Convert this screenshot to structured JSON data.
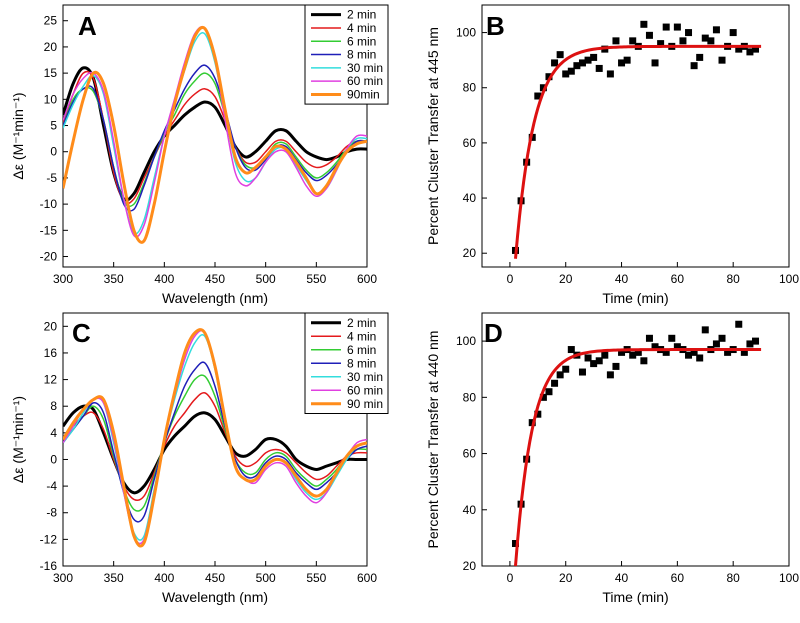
{
  "chart_data": [
    {
      "panel": "A",
      "type": "line",
      "xlabel": "Wavelength (nm)",
      "ylabel": "Δε (M⁻¹min⁻¹)",
      "xlim": [
        300,
        600
      ],
      "ylim": [
        -22,
        28
      ],
      "xticks": [
        300,
        350,
        400,
        450,
        500,
        550,
        600
      ],
      "yticks": [
        -20,
        -15,
        -10,
        -5,
        0,
        5,
        10,
        15,
        20,
        25
      ],
      "legend_position": "top-right",
      "x": [
        300,
        310,
        320,
        330,
        340,
        350,
        360,
        370,
        380,
        390,
        400,
        410,
        420,
        430,
        440,
        450,
        460,
        470,
        480,
        490,
        500,
        510,
        520,
        530,
        540,
        550,
        560,
        570,
        580,
        590,
        600
      ],
      "series": [
        {
          "name": "2 min",
          "color": "#000000",
          "width": 3,
          "values": [
            7,
            13,
            16,
            14,
            5,
            -4,
            -9,
            -8,
            -4,
            0,
            3,
            5,
            7,
            8.5,
            9.5,
            8.5,
            5,
            1,
            -1,
            0,
            2,
            4,
            4,
            2,
            0,
            -1,
            -1.5,
            -1,
            0,
            0.5,
            0.5
          ]
        },
        {
          "name": "4 min",
          "color": "#e41a1c",
          "width": 1.5,
          "values": [
            5.5,
            11,
            15,
            14,
            6,
            -4,
            -9.5,
            -9,
            -5,
            -1,
            3,
            6,
            9,
            11,
            12,
            10.5,
            6,
            1,
            -2,
            -2,
            0,
            2,
            2,
            0,
            -2,
            -3,
            -2.5,
            -1,
            1,
            2,
            2
          ]
        },
        {
          "name": "6 min",
          "color": "#33cc33",
          "width": 1.5,
          "values": [
            5,
            10,
            12,
            11.5,
            6,
            -3,
            -9.5,
            -10,
            -6,
            -1,
            3.5,
            7,
            11,
            13.5,
            15,
            13,
            7,
            1,
            -2.5,
            -3,
            -1,
            1.5,
            1.5,
            -1,
            -3.5,
            -5,
            -4,
            -2,
            0.5,
            2,
            2
          ]
        },
        {
          "name": "8 min",
          "color": "#1f1fb8",
          "width": 1.5,
          "values": [
            5,
            9.5,
            12,
            12,
            6,
            -3,
            -10,
            -11,
            -6.5,
            -1,
            4,
            8,
            12,
            15,
            16.5,
            14,
            8,
            1,
            -3,
            -3.5,
            -1.5,
            1,
            1,
            -1.5,
            -4,
            -5.5,
            -4.5,
            -2.5,
            0,
            2,
            2
          ]
        },
        {
          "name": "30 min",
          "color": "#33dddd",
          "width": 1.5,
          "values": [
            4.5,
            9,
            12.5,
            14.5,
            11,
            1,
            -9,
            -15.5,
            -13,
            -5,
            3,
            9.5,
            15.5,
            21,
            22.5,
            17,
            7,
            -2,
            -5.5,
            -5,
            -2,
            0.5,
            0.5,
            -2.5,
            -5.5,
            -8,
            -7,
            -3.5,
            0.5,
            2.5,
            2.5
          ]
        },
        {
          "name": "60 min",
          "color": "#e040e0",
          "width": 1.5,
          "values": [
            6,
            11,
            14,
            15,
            11.5,
            2,
            -9,
            -16,
            -14,
            -6,
            3,
            10,
            17,
            22.5,
            23.5,
            17.5,
            6,
            -4,
            -6.5,
            -5,
            -2,
            0,
            0,
            -3,
            -6.5,
            -8.5,
            -7,
            -3.5,
            0.5,
            3,
            3
          ]
        },
        {
          "name": "90min",
          "color": "#ff8c1a",
          "width": 3,
          "values": [
            -7,
            2,
            10,
            15,
            13,
            5,
            -6,
            -15,
            -17,
            -10,
            0,
            9,
            16,
            22,
            23.5,
            18,
            8,
            -1,
            -4,
            -3,
            -1,
            1,
            0.5,
            -2,
            -5,
            -8,
            -6.5,
            -3,
            0,
            1.5,
            2
          ]
        }
      ]
    },
    {
      "panel": "B",
      "type": "scatter",
      "xlabel": "Time (min)",
      "ylabel": "Percent Cluster Transfer at 445 nm",
      "xlim": [
        -10,
        100
      ],
      "ylim": [
        15,
        110
      ],
      "xticks": [
        0,
        20,
        40,
        60,
        80,
        100
      ],
      "yticks": [
        20,
        40,
        60,
        80,
        100
      ],
      "points": {
        "x": [
          2,
          4,
          6,
          8,
          10,
          12,
          14,
          16,
          18,
          20,
          22,
          24,
          26,
          28,
          30,
          32,
          34,
          36,
          38,
          40,
          42,
          44,
          46,
          48,
          50,
          52,
          54,
          56,
          58,
          60,
          62,
          64,
          66,
          68,
          70,
          72,
          74,
          76,
          78,
          80,
          82,
          84,
          86,
          88
        ],
        "y": [
          21,
          39,
          53,
          62,
          77,
          80,
          84,
          89,
          92,
          85,
          86,
          88,
          89,
          90,
          91,
          87,
          94,
          85,
          97,
          89,
          90,
          97,
          95,
          103,
          99,
          89,
          96,
          102,
          95,
          102,
          97,
          100,
          88,
          91,
          98,
          97,
          101,
          90,
          95,
          100,
          94,
          95,
          93,
          94
        ]
      },
      "fit": {
        "color": "#dd1111",
        "plateau": 95,
        "start": 18,
        "t0": 2,
        "tau": 6.5,
        "x_range": [
          2,
          90
        ]
      }
    },
    {
      "panel": "C",
      "type": "line",
      "xlabel": "Wavelength (nm)",
      "ylabel": "Δε (M⁻¹min⁻¹)",
      "xlim": [
        300,
        600
      ],
      "ylim": [
        -16,
        22
      ],
      "xticks": [
        300,
        350,
        400,
        450,
        500,
        550,
        600
      ],
      "yticks": [
        -16,
        -12,
        -8,
        -4,
        0,
        4,
        8,
        12,
        16,
        20
      ],
      "legend_position": "top-right",
      "x": [
        300,
        310,
        320,
        330,
        340,
        350,
        360,
        370,
        380,
        390,
        400,
        410,
        420,
        430,
        440,
        450,
        460,
        470,
        480,
        490,
        500,
        510,
        520,
        530,
        540,
        550,
        560,
        570,
        580,
        590,
        600
      ],
      "series": [
        {
          "name": "2 min",
          "color": "#000000",
          "width": 3,
          "values": [
            5,
            7,
            8,
            7.5,
            4,
            0,
            -3.5,
            -5,
            -4,
            -1.5,
            1.5,
            3.5,
            5,
            6.5,
            7,
            6,
            3.5,
            1,
            0.5,
            1.5,
            3,
            3,
            2,
            0,
            -1,
            -1.5,
            -1,
            -0.5,
            0,
            0,
            0
          ]
        },
        {
          "name": "4 min",
          "color": "#e41a1c",
          "width": 1.5,
          "values": [
            3,
            5,
            6.5,
            7,
            4.5,
            0,
            -4,
            -6,
            -5.5,
            -2,
            2,
            5,
            7,
            9,
            10,
            8,
            4,
            0.5,
            -1,
            -0.5,
            1,
            1.5,
            1,
            -0.5,
            -2,
            -3,
            -2.5,
            -1,
            0.5,
            1,
            1
          ]
        },
        {
          "name": "6 min",
          "color": "#33cc33",
          "width": 1.5,
          "values": [
            2.5,
            4.5,
            6.5,
            8,
            6,
            0.5,
            -4.5,
            -7.5,
            -7,
            -2.5,
            2.5,
            6.5,
            9.5,
            12,
            12.5,
            9.5,
            4.5,
            0,
            -2,
            -2,
            0,
            1,
            0.5,
            -1.5,
            -3,
            -4,
            -3,
            -1.5,
            0.5,
            1.5,
            1.5
          ]
        },
        {
          "name": "8 min",
          "color": "#1f1fb8",
          "width": 1.5,
          "values": [
            2.5,
            4.5,
            6.5,
            8.5,
            7,
            1,
            -5,
            -9,
            -8.5,
            -3,
            2.5,
            7,
            11,
            13.5,
            14.5,
            11,
            5,
            0,
            -2.5,
            -2.5,
            -0.5,
            0.5,
            0,
            -2,
            -3.5,
            -4.5,
            -3.5,
            -2,
            0,
            1.5,
            2
          ]
        },
        {
          "name": "30 min",
          "color": "#33dddd",
          "width": 1.5,
          "values": [
            2.5,
            4.5,
            7,
            9,
            8.5,
            2.5,
            -5,
            -11,
            -11.5,
            -4.5,
            3,
            9,
            14,
            17.5,
            18.5,
            13.5,
            5.5,
            -1,
            -3,
            -3,
            -1,
            0,
            -0.5,
            -3,
            -5,
            -6,
            -5,
            -2.5,
            0,
            2,
            2.5
          ]
        },
        {
          "name": "60 min",
          "color": "#e040e0",
          "width": 1.5,
          "values": [
            2.5,
            5,
            7.5,
            9,
            8.5,
            3,
            -5,
            -11.5,
            -12,
            -5,
            3,
            9.5,
            15,
            18.5,
            19,
            14,
            5.5,
            -1,
            -3,
            -3.5,
            -1.5,
            -0.5,
            -1,
            -3.5,
            -5.5,
            -6.5,
            -5,
            -2,
            0.5,
            2.5,
            3
          ]
        },
        {
          "name": "90 min",
          "color": "#ff8c1a",
          "width": 3,
          "values": [
            3,
            5.5,
            7.5,
            9,
            9,
            4,
            -4,
            -11.5,
            -12.5,
            -5.5,
            3,
            10,
            16,
            19,
            19,
            14,
            6,
            -1,
            -3,
            -3,
            -1,
            0,
            -0.5,
            -2.5,
            -4.5,
            -5.5,
            -4.5,
            -2,
            0.5,
            2,
            2.5
          ]
        }
      ]
    },
    {
      "panel": "D",
      "type": "scatter",
      "xlabel": "Time (min)",
      "ylabel": "Percent Cluster Transfer at 440 nm",
      "xlim": [
        -10,
        100
      ],
      "ylim": [
        20,
        110
      ],
      "xticks": [
        0,
        20,
        40,
        60,
        80,
        100
      ],
      "yticks": [
        20,
        40,
        60,
        80,
        100
      ],
      "points": {
        "x": [
          2,
          4,
          6,
          8,
          10,
          12,
          14,
          16,
          18,
          20,
          22,
          24,
          26,
          28,
          30,
          32,
          34,
          36,
          38,
          40,
          42,
          44,
          46,
          48,
          50,
          52,
          54,
          56,
          58,
          60,
          62,
          64,
          66,
          68,
          70,
          72,
          74,
          76,
          78,
          80,
          82,
          84,
          86,
          88
        ],
        "y": [
          28,
          42,
          58,
          71,
          74,
          80,
          82,
          85,
          88,
          90,
          97,
          95,
          89,
          94,
          92,
          93,
          95,
          88,
          91,
          96,
          97,
          95,
          96,
          93,
          101,
          98,
          97,
          96,
          101,
          98,
          97,
          95,
          96,
          94,
          104,
          97,
          99,
          101,
          96,
          97,
          106,
          96,
          99,
          100
        ]
      },
      "fit": {
        "color": "#dd1111",
        "plateau": 97,
        "start": 20,
        "t0": 2,
        "tau": 6.0,
        "x_range": [
          2,
          90
        ]
      }
    }
  ]
}
